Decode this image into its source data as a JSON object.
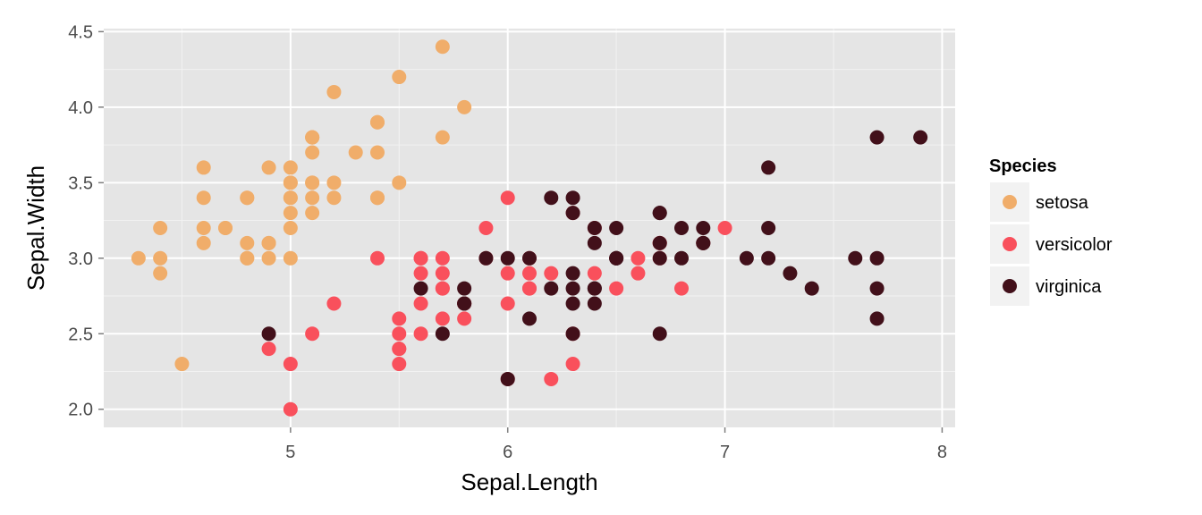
{
  "chart_data": {
    "type": "scatter",
    "xlabel": "Sepal.Length",
    "ylabel": "Sepal.Width",
    "xlim": [
      4.14,
      8.06
    ],
    "ylim": [
      1.88,
      4.52
    ],
    "x_ticks": [
      5,
      6,
      7,
      8
    ],
    "x_tick_labels": [
      "5",
      "6",
      "7",
      "8"
    ],
    "y_ticks": [
      2.0,
      2.5,
      3.0,
      3.5,
      4.0,
      4.5
    ],
    "y_tick_labels": [
      "2.0",
      "2.5",
      "3.0",
      "3.5",
      "4.0",
      "4.5"
    ],
    "grid": true,
    "legend": {
      "title": "Species",
      "position": "right"
    },
    "series": [
      {
        "name": "setosa",
        "color": "#F0AD6A",
        "points": [
          [
            5.1,
            3.5
          ],
          [
            4.9,
            3.0
          ],
          [
            4.7,
            3.2
          ],
          [
            4.6,
            3.1
          ],
          [
            5.0,
            3.6
          ],
          [
            5.4,
            3.9
          ],
          [
            4.6,
            3.4
          ],
          [
            5.0,
            3.4
          ],
          [
            4.4,
            2.9
          ],
          [
            4.9,
            3.1
          ],
          [
            5.4,
            3.7
          ],
          [
            4.8,
            3.4
          ],
          [
            4.8,
            3.0
          ],
          [
            4.3,
            3.0
          ],
          [
            5.8,
            4.0
          ],
          [
            5.7,
            4.4
          ],
          [
            5.4,
            3.9
          ],
          [
            5.1,
            3.5
          ],
          [
            5.7,
            3.8
          ],
          [
            5.1,
            3.8
          ],
          [
            5.4,
            3.4
          ],
          [
            5.1,
            3.7
          ],
          [
            4.6,
            3.6
          ],
          [
            5.1,
            3.3
          ],
          [
            4.8,
            3.4
          ],
          [
            5.0,
            3.0
          ],
          [
            5.0,
            3.4
          ],
          [
            5.2,
            3.5
          ],
          [
            5.2,
            3.4
          ],
          [
            4.7,
            3.2
          ],
          [
            4.8,
            3.1
          ],
          [
            5.4,
            3.4
          ],
          [
            5.2,
            4.1
          ],
          [
            5.5,
            4.2
          ],
          [
            4.9,
            3.1
          ],
          [
            5.0,
            3.2
          ],
          [
            5.5,
            3.5
          ],
          [
            4.9,
            3.6
          ],
          [
            4.4,
            3.0
          ],
          [
            5.1,
            3.4
          ],
          [
            5.0,
            3.5
          ],
          [
            4.5,
            2.3
          ],
          [
            4.4,
            3.2
          ],
          [
            5.0,
            3.5
          ],
          [
            5.1,
            3.8
          ],
          [
            4.8,
            3.0
          ],
          [
            5.1,
            3.8
          ],
          [
            4.6,
            3.2
          ],
          [
            5.3,
            3.7
          ],
          [
            5.0,
            3.3
          ]
        ]
      },
      {
        "name": "versicolor",
        "color": "#F9505C",
        "points": [
          [
            7.0,
            3.2
          ],
          [
            6.4,
            3.2
          ],
          [
            6.9,
            3.1
          ],
          [
            5.5,
            2.3
          ],
          [
            6.5,
            2.8
          ],
          [
            5.7,
            2.8
          ],
          [
            6.3,
            3.3
          ],
          [
            4.9,
            2.4
          ],
          [
            6.6,
            2.9
          ],
          [
            5.2,
            2.7
          ],
          [
            5.0,
            2.0
          ],
          [
            5.9,
            3.0
          ],
          [
            6.0,
            2.2
          ],
          [
            6.1,
            2.9
          ],
          [
            5.6,
            2.9
          ],
          [
            6.7,
            3.1
          ],
          [
            5.6,
            3.0
          ],
          [
            5.8,
            2.7
          ],
          [
            6.2,
            2.2
          ],
          [
            5.6,
            2.5
          ],
          [
            5.9,
            3.2
          ],
          [
            6.1,
            2.8
          ],
          [
            6.3,
            2.5
          ],
          [
            6.1,
            2.8
          ],
          [
            6.4,
            2.9
          ],
          [
            6.6,
            3.0
          ],
          [
            6.8,
            2.8
          ],
          [
            6.7,
            3.0
          ],
          [
            6.0,
            2.9
          ],
          [
            5.7,
            2.6
          ],
          [
            5.5,
            2.4
          ],
          [
            5.5,
            2.4
          ],
          [
            5.8,
            2.7
          ],
          [
            6.0,
            2.7
          ],
          [
            5.4,
            3.0
          ],
          [
            6.0,
            3.4
          ],
          [
            6.7,
            3.1
          ],
          [
            6.3,
            2.3
          ],
          [
            5.6,
            3.0
          ],
          [
            5.5,
            2.5
          ],
          [
            5.5,
            2.6
          ],
          [
            6.1,
            3.0
          ],
          [
            5.8,
            2.6
          ],
          [
            5.0,
            2.3
          ],
          [
            5.6,
            2.7
          ],
          [
            5.7,
            3.0
          ],
          [
            5.7,
            2.9
          ],
          [
            6.2,
            2.9
          ],
          [
            5.1,
            2.5
          ],
          [
            5.7,
            2.8
          ]
        ]
      },
      {
        "name": "virginica",
        "color": "#42101A",
        "points": [
          [
            6.3,
            3.3
          ],
          [
            5.8,
            2.7
          ],
          [
            7.1,
            3.0
          ],
          [
            6.3,
            2.9
          ],
          [
            6.5,
            3.0
          ],
          [
            7.6,
            3.0
          ],
          [
            4.9,
            2.5
          ],
          [
            7.3,
            2.9
          ],
          [
            6.7,
            2.5
          ],
          [
            7.2,
            3.6
          ],
          [
            6.5,
            3.2
          ],
          [
            6.4,
            2.7
          ],
          [
            6.8,
            3.0
          ],
          [
            5.7,
            2.5
          ],
          [
            5.8,
            2.8
          ],
          [
            6.4,
            3.2
          ],
          [
            6.5,
            3.0
          ],
          [
            7.7,
            3.8
          ],
          [
            7.7,
            2.6
          ],
          [
            6.0,
            2.2
          ],
          [
            6.9,
            3.2
          ],
          [
            5.6,
            2.8
          ],
          [
            7.7,
            2.8
          ],
          [
            6.3,
            2.7
          ],
          [
            6.7,
            3.3
          ],
          [
            7.2,
            3.2
          ],
          [
            6.2,
            2.8
          ],
          [
            6.1,
            3.0
          ],
          [
            6.4,
            2.8
          ],
          [
            7.2,
            3.0
          ],
          [
            7.4,
            2.8
          ],
          [
            7.9,
            3.8
          ],
          [
            6.4,
            2.8
          ],
          [
            6.3,
            2.8
          ],
          [
            6.1,
            2.6
          ],
          [
            7.7,
            3.0
          ],
          [
            6.3,
            3.4
          ],
          [
            6.4,
            3.1
          ],
          [
            6.0,
            3.0
          ],
          [
            6.9,
            3.1
          ],
          [
            6.7,
            3.1
          ],
          [
            6.9,
            3.1
          ],
          [
            5.8,
            2.7
          ],
          [
            6.8,
            3.2
          ],
          [
            6.7,
            3.3
          ],
          [
            6.7,
            3.0
          ],
          [
            6.3,
            2.5
          ],
          [
            6.5,
            3.0
          ],
          [
            6.2,
            3.4
          ],
          [
            5.9,
            3.0
          ]
        ]
      }
    ]
  }
}
